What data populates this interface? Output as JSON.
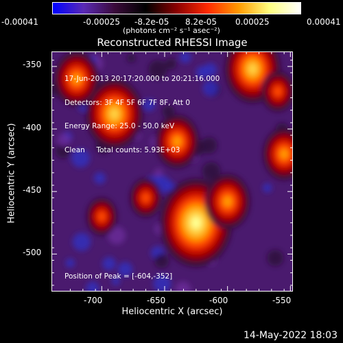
{
  "colorbar": {
    "tick_labels": [
      "-0.00041",
      "-0.00025",
      "-8.2e-05",
      "8.2e-05",
      "0.00025",
      "0.00041"
    ],
    "unit_label": "(photons cm⁻² s⁻¹ asec⁻²)",
    "colors": [
      "#0000ff",
      "#5a2ab4",
      "#3a0a3a",
      "#000000",
      "#8a0000",
      "#ff2a00",
      "#ff9a00",
      "#ffff80",
      "#ffffff"
    ]
  },
  "plot": {
    "title": "Reconstructed RHESSI Image",
    "xlabel": "Heliocentric X (arcsec)",
    "ylabel": "Heliocentric Y (arcsec)",
    "x_ticks": [
      "-700",
      "-650",
      "-600",
      "-550"
    ],
    "y_ticks": [
      "-350",
      "-400",
      "-450",
      "-500"
    ],
    "info_lines": [
      "17-Jun-2013 20:17:20.000 to 20:21:16.000",
      "Detectors: 3F 4F 5F 6F 7F 8F, Att 0",
      "Energy Range: 25.0 - 50.0 keV",
      "Clean     Total counts: 5.93E+03"
    ],
    "peak_label": "Position of Peak = [-604,-352]"
  },
  "footer": {
    "timestamp": "14-May-2022 18:03"
  },
  "chart_data": {
    "type": "heatmap",
    "title": "Reconstructed RHESSI Image",
    "xlabel": "Heliocentric X (arcsec)",
    "ylabel": "Heliocentric Y (arcsec)",
    "xlim": [
      -740,
      -548
    ],
    "ylim": [
      -530,
      -338
    ],
    "color_range": [
      -0.00041,
      0.00041
    ],
    "peak": [
      -604,
      -352
    ],
    "bright_sources": [
      {
        "x": -625,
        "y": -475,
        "level": 1.0
      },
      {
        "x": -600,
        "y": -458,
        "level": 0.75
      },
      {
        "x": -690,
        "y": -388,
        "level": 0.85
      },
      {
        "x": -640,
        "y": -410,
        "level": 0.7
      },
      {
        "x": -580,
        "y": -352,
        "level": 0.8
      },
      {
        "x": -720,
        "y": -360,
        "level": 0.75
      },
      {
        "x": -560,
        "y": -370,
        "level": 0.6
      },
      {
        "x": -555,
        "y": -420,
        "level": 0.65
      },
      {
        "x": -665,
        "y": -455,
        "level": 0.55
      },
      {
        "x": -700,
        "y": -470,
        "level": 0.5
      }
    ]
  }
}
